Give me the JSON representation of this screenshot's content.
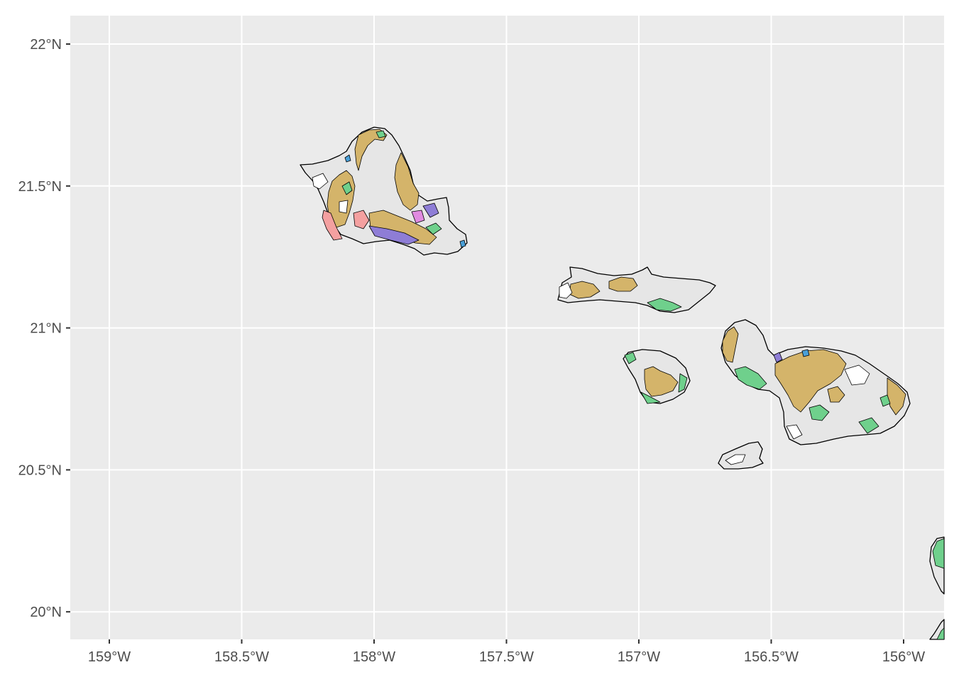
{
  "map": {
    "x_ticks": [
      {
        "value": -159.0,
        "label": "159°W"
      },
      {
        "value": -158.5,
        "label": "158.5°W"
      },
      {
        "value": -158.0,
        "label": "158°W"
      },
      {
        "value": -157.5,
        "label": "157.5°W"
      },
      {
        "value": -157.0,
        "label": "157°W"
      },
      {
        "value": -156.5,
        "label": "156.5°W"
      },
      {
        "value": -156.0,
        "label": "156°W"
      }
    ],
    "y_ticks": [
      {
        "value": 22.0,
        "label": "22°N"
      },
      {
        "value": 21.5,
        "label": "21.5°N"
      },
      {
        "value": 21.0,
        "label": "21°N"
      },
      {
        "value": 20.5,
        "label": "20.5°N"
      },
      {
        "value": 20.0,
        "label": "20°N"
      }
    ],
    "x_range": [
      -159.15,
      -155.84
    ],
    "y_range": [
      19.9,
      22.1
    ],
    "panel_color": "#ebebeb",
    "grid_color": "#ffffff",
    "colors": {
      "land_base": "#e6e6e6",
      "tan": "#d4b46a",
      "green": "#6fd08c",
      "pink": "#f4a0a0",
      "purple": "#8e7dd6",
      "magenta": "#e08ae0",
      "blue": "#4aa0d8",
      "lightpink": "#f0b8c8"
    }
  }
}
